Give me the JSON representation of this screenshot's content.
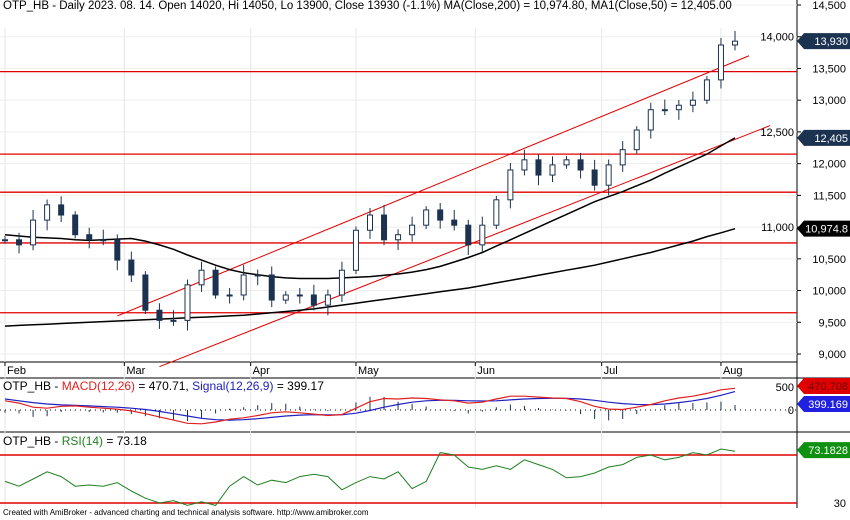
{
  "header": {
    "price": "OTP_HB - Daily 2023. 08. 14. Open 14020, Hi 14050, Lo 13900, Close 13930 (-1.1%) MA(Close,200) = 10,974.80, MA1(Close,50) = 12,405.00",
    "macd_prefix": "OTP_HB - ",
    "macd_label": "MACD(12,26)",
    "macd_eq": " = 470.71, ",
    "signal_label": "Signal(12,26,9)",
    "signal_eq": " = 399.17",
    "rsi_prefix": "OTP_HB - ",
    "rsi_label": "RSI(14)",
    "rsi_eq": " = 73.18"
  },
  "footer": "Created with AmiBroker - advanced charting and technical analysis software. http://www.amibroker.com",
  "colors": {
    "candle": "#1b3350",
    "ma": "#000000",
    "level": "#e00000",
    "macd": "#e02020",
    "signal": "#2020c0",
    "rsi": "#208020"
  },
  "chart_data": [
    {
      "type": "candlestick",
      "title": "OTP_HB Daily",
      "ylim": [
        8800,
        14500
      ],
      "y_ticks": [
        "14,500",
        "14,000",
        "13,500",
        "13,000",
        "12,500",
        "12,000",
        "11,500",
        "11,000",
        "10,500",
        "10,000",
        "9,500",
        "9,000"
      ],
      "y_tick_values": [
        14500,
        14000,
        13500,
        13000,
        12500,
        12000,
        11500,
        11000,
        10500,
        10000,
        9500,
        9000
      ],
      "x_months": [
        "Feb",
        "Mar",
        "Apr",
        "May",
        "Jun",
        "Jul",
        "Aug"
      ],
      "x_month_index": [
        0,
        8.5,
        17.5,
        25,
        33.5,
        42.5,
        51
      ],
      "closes": [
        10800,
        10720,
        11110,
        11350,
        11190,
        10880,
        10800,
        10800,
        10480,
        10245,
        9690,
        9530,
        9530,
        10090,
        10320,
        9930,
        9930,
        10245,
        10245,
        9850,
        9930,
        9930,
        9770,
        9930,
        10320,
        10950,
        11190,
        10800,
        10880,
        11030,
        11270,
        11110,
        11030,
        10720,
        11030,
        11430,
        11900,
        12060,
        11820,
        11980,
        12060,
        11900,
        11660,
        11980,
        12220,
        12530,
        12850,
        12850,
        12920,
        13000,
        13320,
        13870,
        13930
      ],
      "ma200": [
        9440,
        9450,
        9460,
        9470,
        9480,
        9490,
        9500,
        9510,
        9520,
        9530,
        9540,
        9550,
        9560,
        9570,
        9580,
        9590,
        9600,
        9610,
        9630,
        9650,
        9670,
        9690,
        9710,
        9740,
        9770,
        9800,
        9830,
        9860,
        9890,
        9920,
        9950,
        9980,
        10010,
        10040,
        10080,
        10120,
        10160,
        10200,
        10240,
        10280,
        10320,
        10360,
        10400,
        10450,
        10500,
        10550,
        10600,
        10660,
        10720,
        10780,
        10850,
        10910,
        10975
      ],
      "ma50": [
        10880,
        10860,
        10840,
        10830,
        10820,
        10800,
        10790,
        10800,
        10810,
        10820,
        10780,
        10720,
        10650,
        10560,
        10480,
        10400,
        10330,
        10280,
        10250,
        10220,
        10200,
        10190,
        10190,
        10190,
        10200,
        10210,
        10220,
        10240,
        10260,
        10290,
        10330,
        10380,
        10450,
        10520,
        10600,
        10700,
        10800,
        10900,
        11000,
        11100,
        11200,
        11300,
        11400,
        11480,
        11560,
        11650,
        11740,
        11850,
        11950,
        12050,
        12150,
        12280,
        12405
      ],
      "levels": [
        13450,
        12150,
        11550,
        10750,
        9650
      ],
      "channel": [
        {
          "from": [
            8,
            9600
          ],
          "to": [
            53,
            13700
          ]
        },
        {
          "from": [
            11,
            8800
          ],
          "to": [
            54.5,
            12600
          ]
        }
      ],
      "last_labels": {
        "close": "13,930",
        "ma50": "12,405",
        "ma200": "10,974.8"
      }
    },
    {
      "type": "line",
      "title": "MACD",
      "ylim": [
        -450,
        650
      ],
      "zero_label": "0",
      "top_label": "500",
      "macd": [
        200,
        150,
        60,
        40,
        80,
        90,
        60,
        40,
        20,
        -20,
        -80,
        -150,
        -220,
        -290,
        -300,
        -260,
        -200,
        -170,
        -120,
        -60,
        -40,
        -60,
        -90,
        -120,
        -100,
        40,
        180,
        250,
        240,
        260,
        250,
        220,
        200,
        150,
        170,
        240,
        300,
        300,
        280,
        260,
        250,
        180,
        80,
        20,
        10,
        60,
        120,
        200,
        260,
        300,
        360,
        440,
        471
      ],
      "signal": [
        240,
        200,
        160,
        130,
        110,
        100,
        90,
        75,
        60,
        40,
        10,
        -30,
        -80,
        -130,
        -180,
        -210,
        -220,
        -210,
        -190,
        -160,
        -130,
        -110,
        -100,
        -105,
        -105,
        -70,
        -10,
        60,
        120,
        170,
        200,
        210,
        210,
        200,
        195,
        200,
        220,
        240,
        250,
        255,
        255,
        240,
        210,
        170,
        140,
        120,
        115,
        130,
        160,
        200,
        250,
        320,
        399
      ],
      "last_labels": {
        "macd": "470.708",
        "signal": "399.169"
      }
    },
    {
      "type": "line",
      "title": "RSI",
      "ylim": [
        25,
        80
      ],
      "levels": [
        70,
        30
      ],
      "tick": "30",
      "rsi": [
        48,
        44,
        50,
        56,
        52,
        44,
        45,
        44,
        47,
        40,
        34,
        30,
        32,
        28,
        31,
        28,
        44,
        52,
        45,
        49,
        47,
        52,
        54,
        52,
        41,
        47,
        52,
        50,
        56,
        42,
        48,
        72,
        70,
        60,
        58,
        61,
        58,
        66,
        62,
        58,
        51,
        52,
        55,
        60,
        62,
        68,
        70,
        66,
        68,
        72,
        70,
        75,
        73.18
      ],
      "last_label": "73.1828"
    }
  ]
}
